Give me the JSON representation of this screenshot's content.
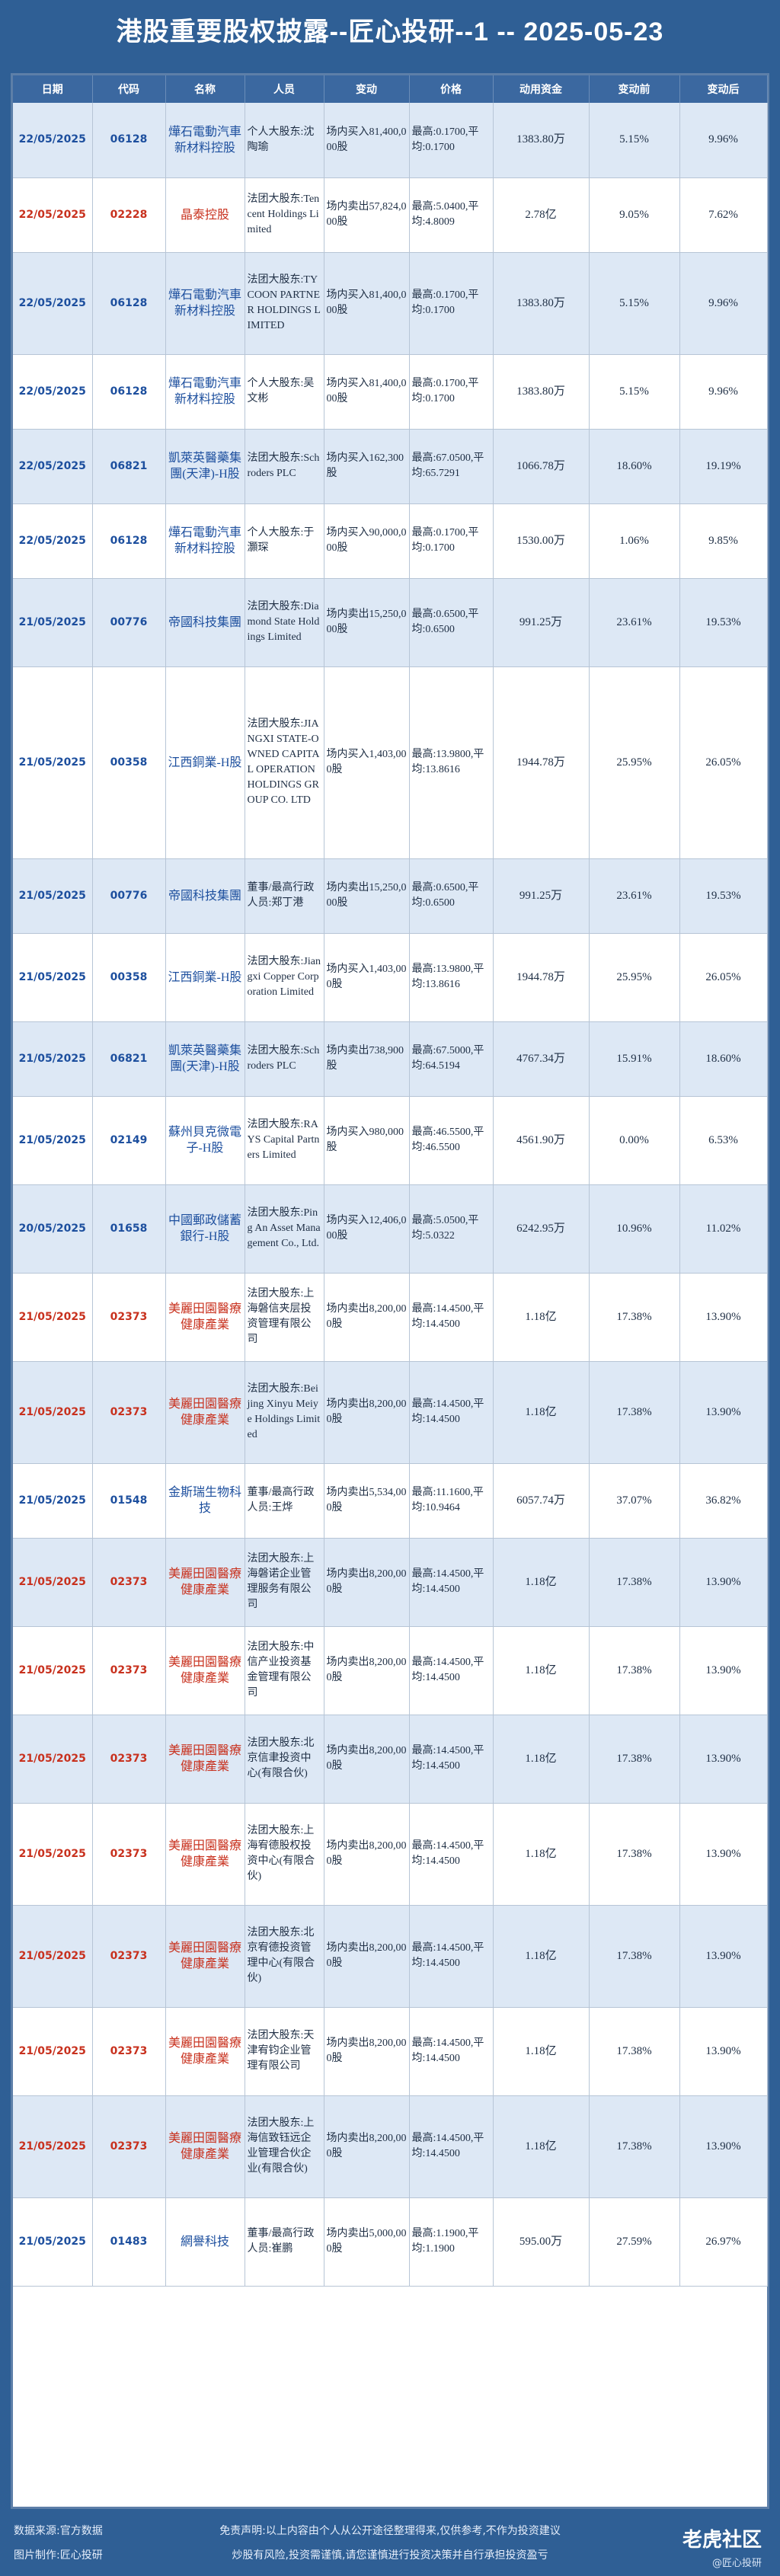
{
  "title": "港股重要股权披露--匠心投研--1 -- 2025-05-23",
  "headers": [
    "日期",
    "代码",
    "名称",
    "人员",
    "变动",
    "价格",
    "动用资金",
    "变动前",
    "变动后"
  ],
  "rows": [
    {
      "date": "22/05/2025",
      "code": "06128",
      "name": "燁石電動汽車新材料控股",
      "person": "个人大股东:沈陶瑜",
      "change": "场内买入81,400,000股",
      "price": "最高:0.1700,平均:0.1700",
      "amount": "1383.80万",
      "before": "5.15%",
      "after": "9.96%",
      "red": false
    },
    {
      "date": "22/05/2025",
      "code": "02228",
      "name": "晶泰控股",
      "person": "法团大股东:Tencent Holdings Limited",
      "change": "场内卖出57,824,000股",
      "price": "最高:5.0400,平均:4.8009",
      "amount": "2.78亿",
      "before": "9.05%",
      "after": "7.62%",
      "red": true
    },
    {
      "date": "22/05/2025",
      "code": "06128",
      "name": "燁石電動汽車新材料控股",
      "person": "法团大股东:TYCOON PARTNER HOLDINGS LIMITED",
      "change": "场内买入81,400,000股",
      "price": "最高:0.1700,平均:0.1700",
      "amount": "1383.80万",
      "before": "5.15%",
      "after": "9.96%",
      "red": false
    },
    {
      "date": "22/05/2025",
      "code": "06128",
      "name": "燁石電動汽車新材料控股",
      "person": "个人大股东:吴文彬",
      "change": "场内买入81,400,000股",
      "price": "最高:0.1700,平均:0.1700",
      "amount": "1383.80万",
      "before": "5.15%",
      "after": "9.96%",
      "red": false
    },
    {
      "date": "22/05/2025",
      "code": "06821",
      "name": "凱萊英醫藥集團(天津)-H股",
      "person": "法团大股东:Schroders PLC",
      "change": "场内买入162,300股",
      "price": "最高:67.0500,平均:65.7291",
      "amount": "1066.78万",
      "before": "18.60%",
      "after": "19.19%",
      "red": false
    },
    {
      "date": "22/05/2025",
      "code": "06128",
      "name": "燁石電動汽車新材料控股",
      "person": "个人大股东:于灝琛",
      "change": "场内买入90,000,000股",
      "price": "最高:0.1700,平均:0.1700",
      "amount": "1530.00万",
      "before": "1.06%",
      "after": "9.85%",
      "red": false
    },
    {
      "date": "21/05/2025",
      "code": "00776",
      "name": "帝國科技集團",
      "person": "法团大股东:Diamond State Holdings Limited",
      "change": "场内卖出15,250,000股",
      "price": "最高:0.6500,平均:0.6500",
      "amount": "991.25万",
      "before": "23.61%",
      "after": "19.53%",
      "red": false
    },
    {
      "date": "21/05/2025",
      "code": "00358",
      "name": "江西銅業-H股",
      "person": "法团大股东:JIANGXI STATE-OWNED CAPITAL OPERATION HOLDINGS GROUP CO. LTD",
      "change": "场内买入1,403,000股",
      "price": "最高:13.9800,平均:13.8616",
      "amount": "1944.78万",
      "before": "25.95%",
      "after": "26.05%",
      "red": false
    },
    {
      "date": "21/05/2025",
      "code": "00776",
      "name": "帝國科技集團",
      "person": "董事/最高行政人员:郑丁港",
      "change": "场内卖出15,250,000股",
      "price": "最高:0.6500,平均:0.6500",
      "amount": "991.25万",
      "before": "23.61%",
      "after": "19.53%",
      "red": false
    },
    {
      "date": "21/05/2025",
      "code": "00358",
      "name": "江西銅業-H股",
      "person": "法团大股东:Jiangxi Copper Corporation Limited",
      "change": "场内买入1,403,000股",
      "price": "最高:13.9800,平均:13.8616",
      "amount": "1944.78万",
      "before": "25.95%",
      "after": "26.05%",
      "red": false
    },
    {
      "date": "21/05/2025",
      "code": "06821",
      "name": "凱萊英醫藥集團(天津)-H股",
      "person": "法团大股东:Schroders PLC",
      "change": "场内卖出738,900股",
      "price": "最高:67.5000,平均:64.5194",
      "amount": "4767.34万",
      "before": "15.91%",
      "after": "18.60%",
      "red": false
    },
    {
      "date": "21/05/2025",
      "code": "02149",
      "name": "蘇州貝克微電子-H股",
      "person": "法团大股东:RAYS Capital Partners Limited",
      "change": "场内买入980,000股",
      "price": "最高:46.5500,平均:46.5500",
      "amount": "4561.90万",
      "before": "0.00%",
      "after": "6.53%",
      "red": false
    },
    {
      "date": "20/05/2025",
      "code": "01658",
      "name": "中國郵政儲蓄銀行-H股",
      "person": "法团大股东:Ping An Asset Management Co., Ltd.",
      "change": "场内买入12,406,000股",
      "price": "最高:5.0500,平均:5.0322",
      "amount": "6242.95万",
      "before": "10.96%",
      "after": "11.02%",
      "red": false
    },
    {
      "date": "21/05/2025",
      "code": "02373",
      "name": "美麗田園醫療健康產業",
      "person": "法团大股东:上海磐信夹层投资管理有限公司",
      "change": "场内卖出8,200,000股",
      "price": "最高:14.4500,平均:14.4500",
      "amount": "1.18亿",
      "before": "17.38%",
      "after": "13.90%",
      "red": true
    },
    {
      "date": "21/05/2025",
      "code": "02373",
      "name": "美麗田園醫療健康產業",
      "person": "法团大股东:Beijing Xinyu Meiye Holdings Limited",
      "change": "场内卖出8,200,000股",
      "price": "最高:14.4500,平均:14.4500",
      "amount": "1.18亿",
      "before": "17.38%",
      "after": "13.90%",
      "red": true
    },
    {
      "date": "21/05/2025",
      "code": "01548",
      "name": "金斯瑞生物科技",
      "person": "董事/最高行政人员:王烨",
      "change": "场内卖出5,534,000股",
      "price": "最高:11.1600,平均:10.9464",
      "amount": "6057.74万",
      "before": "37.07%",
      "after": "36.82%",
      "red": false
    },
    {
      "date": "21/05/2025",
      "code": "02373",
      "name": "美麗田園醫療健康產業",
      "person": "法团大股东:上海磐诺企业管理服务有限公司",
      "change": "场内卖出8,200,000股",
      "price": "最高:14.4500,平均:14.4500",
      "amount": "1.18亿",
      "before": "17.38%",
      "after": "13.90%",
      "red": true
    },
    {
      "date": "21/05/2025",
      "code": "02373",
      "name": "美麗田園醫療健康產業",
      "person": "法团大股东:中信产业投资基金管理有限公司",
      "change": "场内卖出8,200,000股",
      "price": "最高:14.4500,平均:14.4500",
      "amount": "1.18亿",
      "before": "17.38%",
      "after": "13.90%",
      "red": true
    },
    {
      "date": "21/05/2025",
      "code": "02373",
      "name": "美麗田園醫療健康產業",
      "person": "法团大股东:北京信聿投资中心(有限合伙)",
      "change": "场内卖出8,200,000股",
      "price": "最高:14.4500,平均:14.4500",
      "amount": "1.18亿",
      "before": "17.38%",
      "after": "13.90%",
      "red": true
    },
    {
      "date": "21/05/2025",
      "code": "02373",
      "name": "美麗田園醫療健康產業",
      "person": "法团大股东:上海宥德股权投资中心(有限合伙)",
      "change": "场内卖出8,200,000股",
      "price": "最高:14.4500,平均:14.4500",
      "amount": "1.18亿",
      "before": "17.38%",
      "after": "13.90%",
      "red": true
    },
    {
      "date": "21/05/2025",
      "code": "02373",
      "name": "美麗田園醫療健康產業",
      "person": "法团大股东:北京宥德投资管理中心(有限合伙)",
      "change": "场内卖出8,200,000股",
      "price": "最高:14.4500,平均:14.4500",
      "amount": "1.18亿",
      "before": "17.38%",
      "after": "13.90%",
      "red": true
    },
    {
      "date": "21/05/2025",
      "code": "02373",
      "name": "美麗田園醫療健康產業",
      "person": "法团大股东:天津宥钧企业管理有限公司",
      "change": "场内卖出8,200,000股",
      "price": "最高:14.4500,平均:14.4500",
      "amount": "1.18亿",
      "before": "17.38%",
      "after": "13.90%",
      "red": true
    },
    {
      "date": "21/05/2025",
      "code": "02373",
      "name": "美麗田園醫療健康產業",
      "person": "法团大股东:上海信致钰远企业管理合伙企业(有限合伙)",
      "change": "场内卖出8,200,000股",
      "price": "最高:14.4500,平均:14.4500",
      "amount": "1.18亿",
      "before": "17.38%",
      "after": "13.90%",
      "red": true
    },
    {
      "date": "21/05/2025",
      "code": "01483",
      "name": "網譽科技",
      "person": "董事/最高行政人员:崔鹏",
      "change": "场内卖出5,000,000股",
      "price": "最高:1.1900,平均:1.1900",
      "amount": "595.00万",
      "before": "27.59%",
      "after": "26.97%",
      "red": false
    }
  ],
  "footer": {
    "source": "数据来源:官方数据",
    "maker": "图片制作:匠心投研",
    "disclaimer1": "免责声明:以上内容由个人从公开途径整理得来,仅供参考,不作为投资建议",
    "disclaimer2": "炒股有风险,投资需谨慎,请您谨慎进行投资决策并自行承担投资盈亏",
    "brand": "老虎社区",
    "handle": "@匠心投研"
  }
}
